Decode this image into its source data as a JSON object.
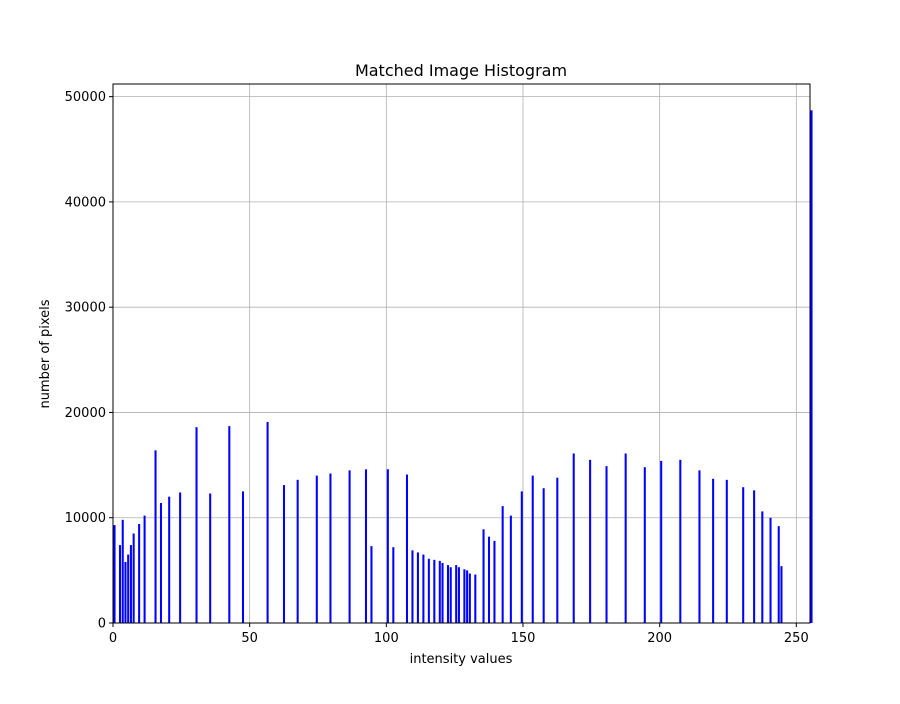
{
  "chart_data": {
    "type": "bar",
    "title": "Matched Image Histogram",
    "xlabel": "intensity values",
    "ylabel": "number of pixels",
    "xlim": [
      0,
      255
    ],
    "ylim": [
      0,
      51200
    ],
    "grid": true,
    "xticks": [
      0,
      50,
      100,
      150,
      200,
      250
    ],
    "yticks": [
      0,
      10000,
      20000,
      30000,
      40000,
      50000
    ],
    "bar_color": "#0000ff",
    "series": [
      {
        "x": [
          0,
          2,
          3,
          4,
          5,
          6,
          7,
          9,
          11,
          15,
          17,
          20,
          24,
          30,
          35,
          42,
          47,
          56,
          62,
          67,
          74,
          79,
          86,
          94,
          92,
          100,
          102,
          107,
          109,
          111,
          113,
          115,
          117,
          119,
          120,
          122,
          123,
          125,
          126,
          128,
          129,
          130,
          132,
          135,
          137,
          139,
          142,
          145,
          149,
          153,
          157,
          162,
          168,
          174,
          180,
          187,
          194,
          200,
          207,
          214,
          219,
          224,
          230,
          234,
          237,
          240,
          243,
          244,
          255
        ],
        "values": [
          9300,
          7400,
          9800,
          5800,
          6500,
          7400,
          8500,
          9400,
          10200,
          16400,
          11400,
          12000,
          12400,
          18600,
          12300,
          18700,
          12500,
          19100,
          13100,
          13600,
          14000,
          14200,
          14500,
          7300,
          14600,
          14600,
          7200,
          14100,
          6900,
          6700,
          6500,
          6100,
          6000,
          5900,
          5700,
          5500,
          5300,
          5500,
          5300,
          5100,
          5000,
          4700,
          4600,
          8900,
          8200,
          7800,
          11100,
          10200,
          12500,
          14000,
          12800,
          13800,
          16100,
          15500,
          14900,
          16100,
          14800,
          15400,
          15500,
          14500,
          13700,
          13600,
          12900,
          12600,
          10600,
          10000,
          9200,
          5400,
          48700
        ]
      }
    ]
  }
}
